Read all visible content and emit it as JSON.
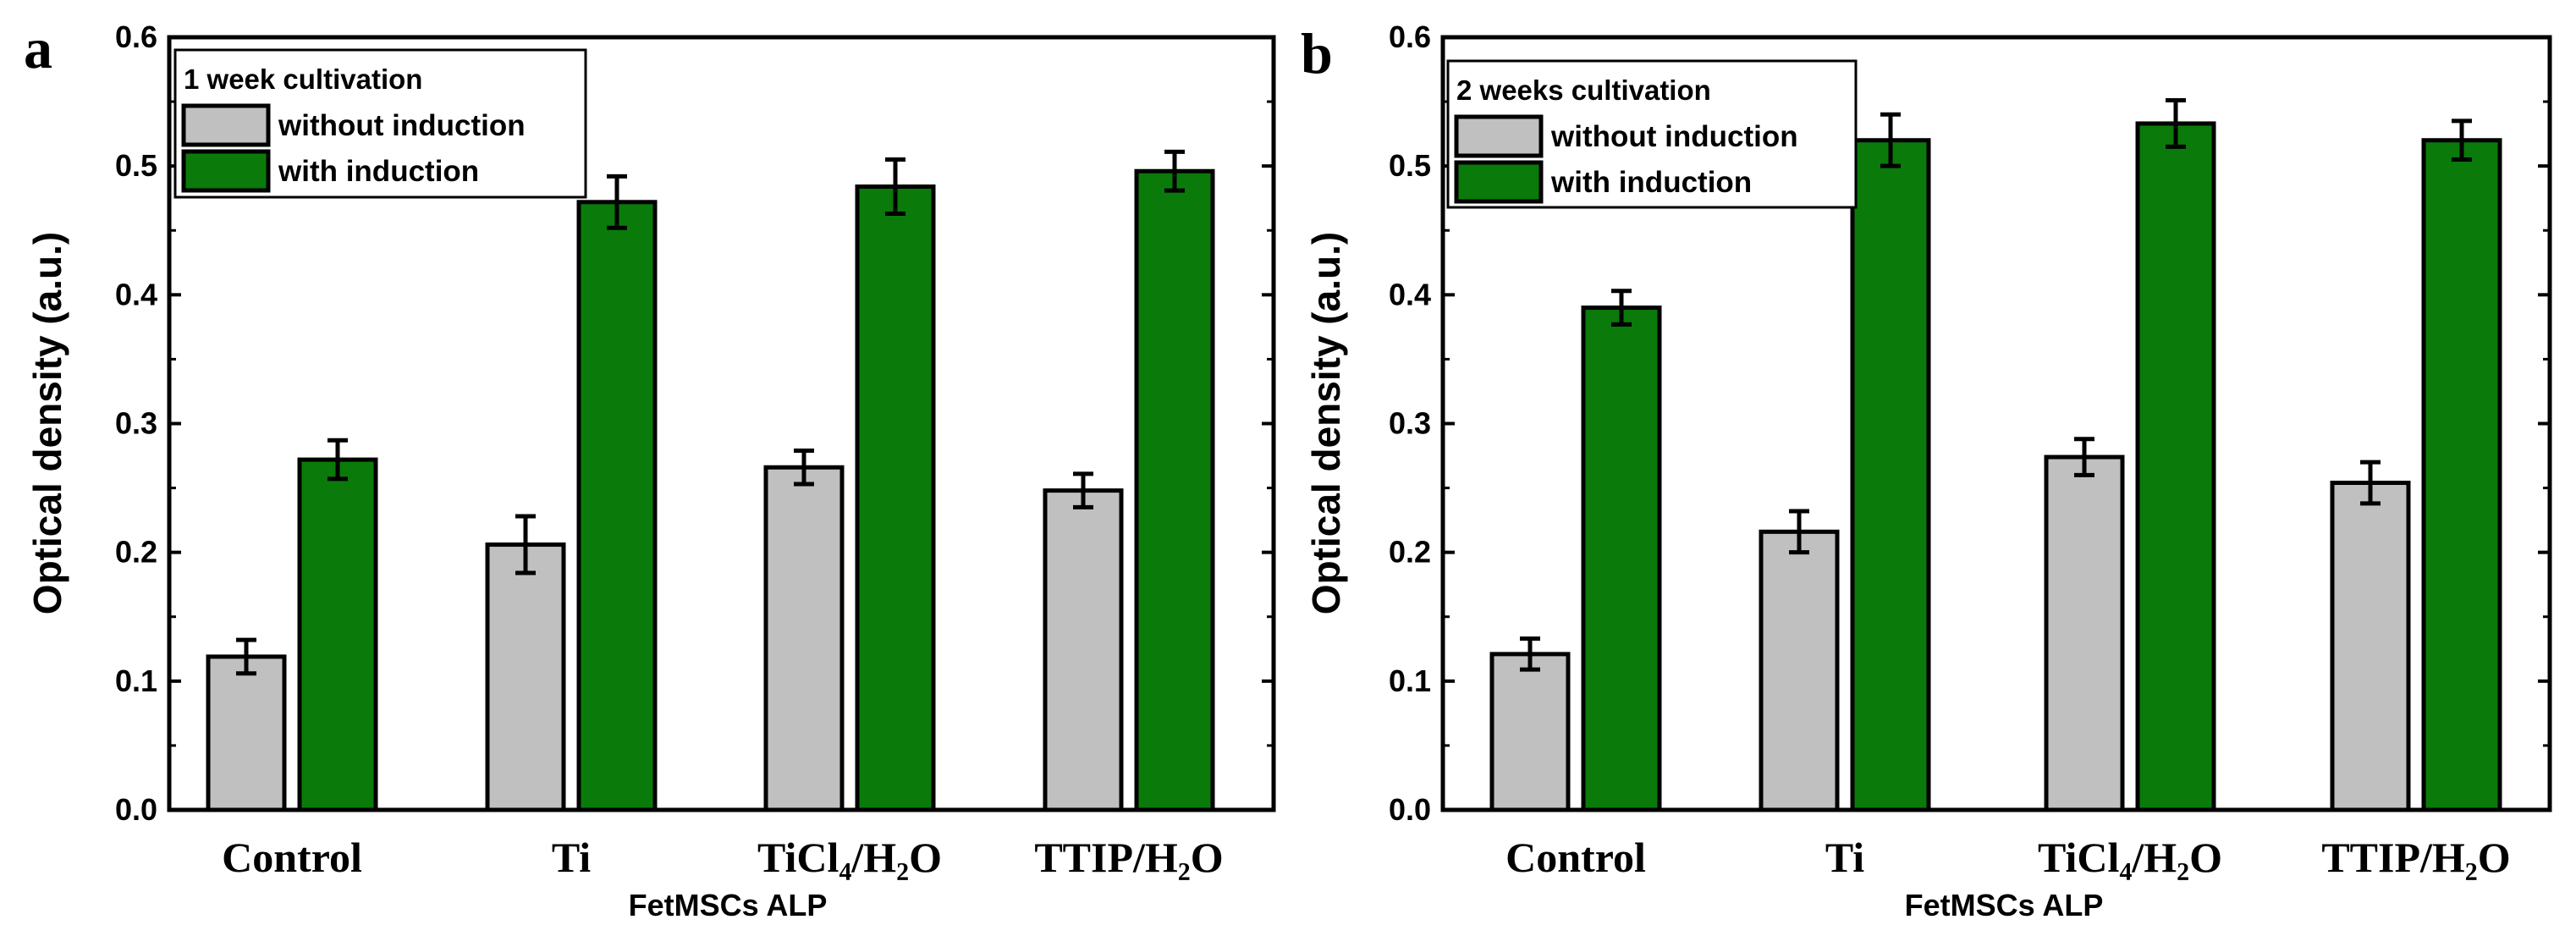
{
  "colors": {
    "without_induction": "#c0c0c0",
    "with_induction": "#0a7a0a",
    "stroke": "#000000"
  },
  "chart_data": [
    {
      "type": "bar",
      "panel_label": "a",
      "legend_title": "1 week cultivation",
      "legend_position": "top-left",
      "categories": [
        "Control",
        "Ti",
        "TiCl₄/H₂O",
        "TTIP/H₂O"
      ],
      "series": [
        {
          "name": "without induction",
          "values": [
            0.119,
            0.206,
            0.266,
            0.248
          ],
          "errors": [
            0.013,
            0.022,
            0.013,
            0.013
          ]
        },
        {
          "name": "with induction",
          "values": [
            0.272,
            0.472,
            0.484,
            0.496
          ],
          "errors": [
            0.015,
            0.02,
            0.021,
            0.015
          ]
        }
      ],
      "xlabel": "FetMSCs ALP",
      "ylabel": "Optical density (a.u.)",
      "ylim": [
        0,
        0.6
      ],
      "yticks": [
        "0.0",
        "0.1",
        "0.2",
        "0.3",
        "0.4",
        "0.5",
        "0.6"
      ],
      "grid": false
    },
    {
      "type": "bar",
      "panel_label": "b",
      "legend_title": "2 weeks cultivation",
      "legend_position": "top-left",
      "categories": [
        "Control",
        "Ti",
        "TiCl₄/H₂O",
        "TTIP/H₂O"
      ],
      "series": [
        {
          "name": "without induction",
          "values": [
            0.121,
            0.216,
            0.274,
            0.254
          ],
          "errors": [
            0.012,
            0.016,
            0.014,
            0.016
          ]
        },
        {
          "name": "with induction",
          "values": [
            0.39,
            0.52,
            0.533,
            0.52
          ],
          "errors": [
            0.013,
            0.02,
            0.018,
            0.015
          ]
        }
      ],
      "xlabel": "FetMSCs ALP",
      "ylabel": "Optical density (a.u.)",
      "ylim": [
        0,
        0.6
      ],
      "yticks": [
        "0.0",
        "0.1",
        "0.2",
        "0.3",
        "0.4",
        "0.5",
        "0.6"
      ],
      "grid": false
    }
  ]
}
